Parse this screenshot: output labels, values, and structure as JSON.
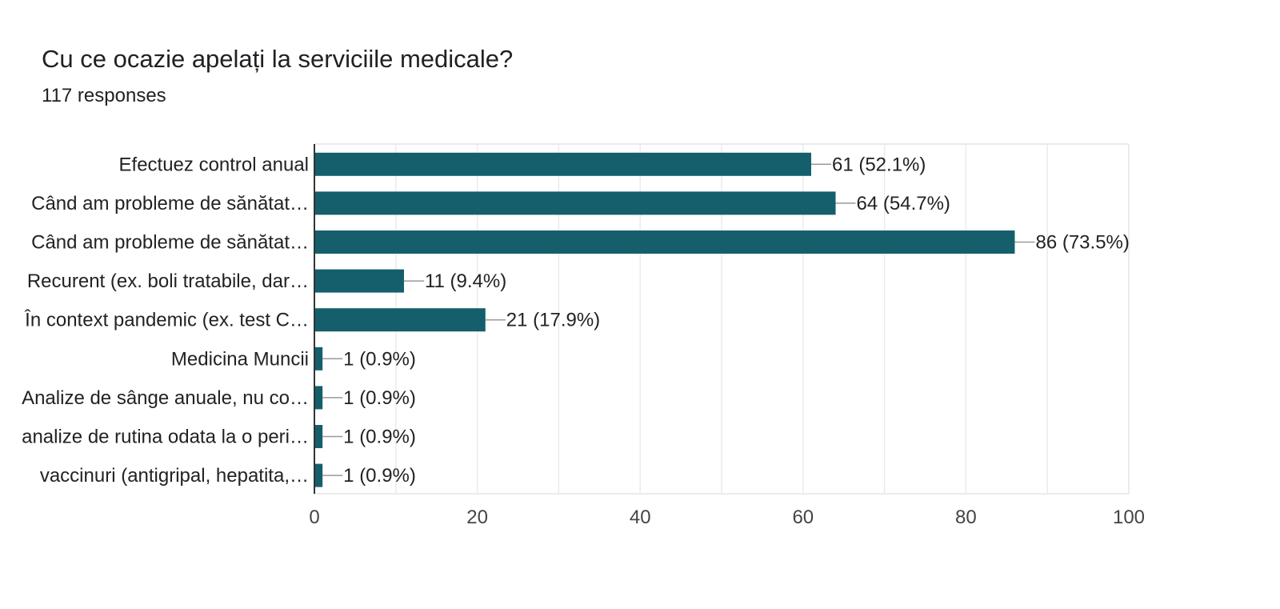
{
  "header": {
    "title": "Cu ce ocazie apelați la serviciile medicale?",
    "subtitle": "117 responses"
  },
  "colors": {
    "bar": "#145f6b",
    "grid": "#ebebeb",
    "axis": "#333333",
    "leader": "#999999"
  },
  "chart_data": {
    "type": "bar",
    "orientation": "horizontal",
    "categories": [
      "Efectuez control anual",
      "Când am probleme de sănătat…",
      "Când am probleme de sănătat…",
      "Recurent (ex. boli tratabile, dar…",
      "În context pandemic (ex. test C…",
      "Medicina Muncii",
      "Analize de sânge anuale, nu co…",
      "analize de rutina odata la o peri…",
      "vaccinuri (antigripal, hepatita,…"
    ],
    "values": [
      61,
      64,
      86,
      11,
      21,
      1,
      1,
      1,
      1
    ],
    "data_labels": [
      "61 (52.1%)",
      "64 (54.7%)",
      "86 (73.5%)",
      "11 (9.4%)",
      "21 (17.9%)",
      "1 (0.9%)",
      "1 (0.9%)",
      "1 (0.9%)",
      "1 (0.9%)"
    ],
    "xlim": [
      0,
      100
    ],
    "xticks": [
      0,
      20,
      40,
      60,
      80,
      100
    ],
    "grid": true,
    "legend": "none"
  }
}
